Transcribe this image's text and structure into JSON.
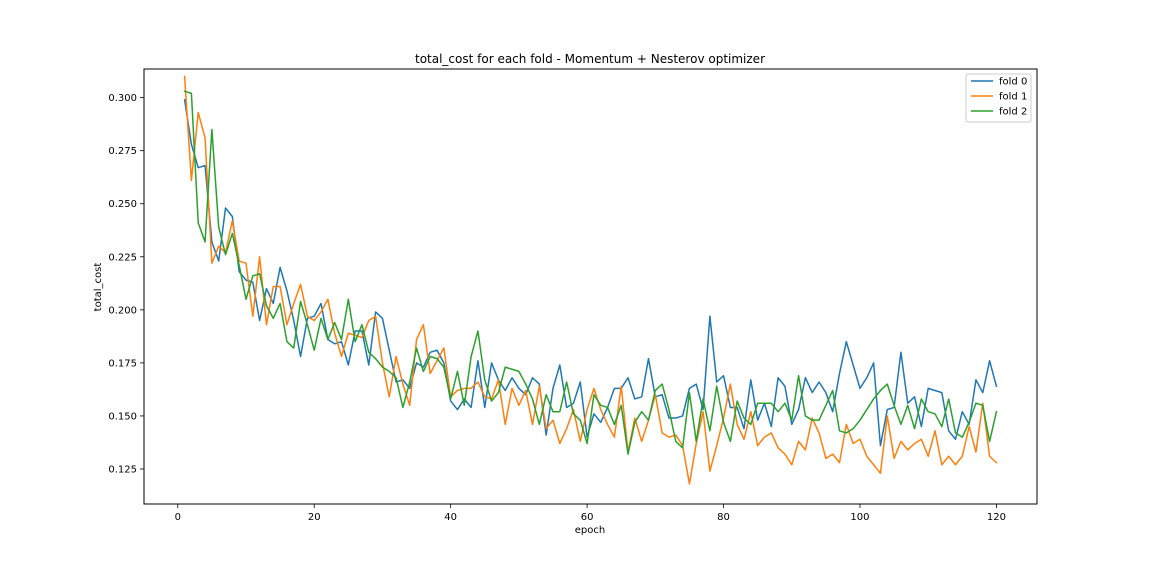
{
  "chart_data": {
    "type": "line",
    "title": "total_cost for each fold - Momentum + Nesterov optimizer",
    "xlabel": "epoch",
    "ylabel": "total_cost",
    "xlim": [
      -4.95,
      125.95
    ],
    "ylim": [
      0.1085,
      0.3135
    ],
    "xticks": [
      0,
      20,
      40,
      60,
      80,
      100,
      120
    ],
    "yticks": [
      0.125,
      0.15,
      0.175,
      0.2,
      0.225,
      0.25,
      0.275,
      0.3
    ],
    "ytick_labels": [
      "0.125",
      "0.150",
      "0.175",
      "0.200",
      "0.225",
      "0.250",
      "0.275",
      "0.300"
    ],
    "grid": false,
    "legend_position": "top-right",
    "x": [
      1,
      2,
      3,
      4,
      5,
      6,
      7,
      8,
      9,
      10,
      11,
      12,
      13,
      14,
      15,
      16,
      17,
      18,
      19,
      20,
      21,
      22,
      23,
      24,
      25,
      26,
      27,
      28,
      29,
      30,
      31,
      32,
      33,
      34,
      35,
      36,
      37,
      38,
      39,
      40,
      41,
      42,
      43,
      44,
      45,
      46,
      47,
      48,
      49,
      50,
      51,
      52,
      53,
      54,
      55,
      56,
      57,
      58,
      59,
      60,
      61,
      62,
      63,
      64,
      65,
      66,
      67,
      68,
      69,
      70,
      71,
      72,
      73,
      74,
      75,
      76,
      77,
      78,
      79,
      80,
      81,
      82,
      83,
      84,
      85,
      86,
      87,
      88,
      89,
      90,
      91,
      92,
      93,
      94,
      95,
      96,
      97,
      98,
      99,
      100,
      101,
      102,
      103,
      104,
      105,
      106,
      107,
      108,
      109,
      110,
      111,
      112,
      113,
      114,
      115,
      116,
      117,
      118,
      119,
      120
    ],
    "series": [
      {
        "name": "fold 0",
        "color": "#1f77b4",
        "values": [
          0.299,
          0.278,
          0.267,
          0.268,
          0.232,
          0.223,
          0.248,
          0.244,
          0.218,
          0.214,
          0.213,
          0.195,
          0.21,
          0.203,
          0.22,
          0.209,
          0.195,
          0.178,
          0.196,
          0.197,
          0.203,
          0.186,
          0.184,
          0.185,
          0.174,
          0.19,
          0.19,
          0.174,
          0.199,
          0.196,
          0.181,
          0.166,
          0.167,
          0.163,
          0.175,
          0.173,
          0.18,
          0.181,
          0.175,
          0.157,
          0.153,
          0.158,
          0.154,
          0.176,
          0.154,
          0.175,
          0.167,
          0.162,
          0.168,
          0.163,
          0.16,
          0.168,
          0.165,
          0.141,
          0.163,
          0.174,
          0.154,
          0.156,
          0.166,
          0.14,
          0.151,
          0.147,
          0.154,
          0.163,
          0.163,
          0.168,
          0.158,
          0.159,
          0.177,
          0.159,
          0.16,
          0.149,
          0.149,
          0.15,
          0.163,
          0.165,
          0.153,
          0.197,
          0.166,
          0.169,
          0.154,
          0.154,
          0.144,
          0.167,
          0.148,
          0.156,
          0.145,
          0.168,
          0.164,
          0.146,
          0.153,
          0.168,
          0.161,
          0.166,
          0.161,
          0.152,
          0.17,
          0.185,
          0.174,
          0.163,
          0.168,
          0.175,
          0.136,
          0.153,
          0.154,
          0.18,
          0.156,
          0.159,
          0.145,
          0.163,
          0.162,
          0.161,
          0.143,
          0.139,
          0.152,
          0.146,
          0.167,
          0.161,
          0.176,
          0.164
        ]
      },
      {
        "name": "fold 1",
        "color": "#ff7f0e",
        "values": [
          0.31,
          0.261,
          0.293,
          0.281,
          0.222,
          0.23,
          0.227,
          0.242,
          0.223,
          0.222,
          0.197,
          0.225,
          0.193,
          0.211,
          0.211,
          0.193,
          0.203,
          0.212,
          0.197,
          0.195,
          0.199,
          0.205,
          0.189,
          0.178,
          0.189,
          0.188,
          0.187,
          0.195,
          0.197,
          0.175,
          0.159,
          0.178,
          0.165,
          0.155,
          0.186,
          0.193,
          0.17,
          0.176,
          0.182,
          0.159,
          0.162,
          0.163,
          0.163,
          0.166,
          0.159,
          0.158,
          0.167,
          0.146,
          0.163,
          0.155,
          0.162,
          0.146,
          0.164,
          0.144,
          0.148,
          0.137,
          0.144,
          0.153,
          0.138,
          0.153,
          0.163,
          0.153,
          0.146,
          0.14,
          0.164,
          0.133,
          0.149,
          0.138,
          0.148,
          0.16,
          0.142,
          0.14,
          0.141,
          0.136,
          0.118,
          0.137,
          0.152,
          0.124,
          0.136,
          0.149,
          0.165,
          0.146,
          0.139,
          0.152,
          0.136,
          0.14,
          0.142,
          0.135,
          0.132,
          0.127,
          0.138,
          0.134,
          0.149,
          0.142,
          0.13,
          0.132,
          0.128,
          0.146,
          0.137,
          0.139,
          0.131,
          0.127,
          0.123,
          0.15,
          0.13,
          0.138,
          0.134,
          0.137,
          0.139,
          0.131,
          0.143,
          0.127,
          0.131,
          0.127,
          0.131,
          0.145,
          0.133,
          0.156,
          0.131,
          0.128
        ]
      },
      {
        "name": "fold 2",
        "color": "#2ca02c",
        "values": [
          0.303,
          0.302,
          0.241,
          0.232,
          0.285,
          0.239,
          0.226,
          0.236,
          0.221,
          0.205,
          0.216,
          0.217,
          0.202,
          0.196,
          0.203,
          0.185,
          0.182,
          0.204,
          0.193,
          0.181,
          0.196,
          0.186,
          0.194,
          0.186,
          0.205,
          0.185,
          0.193,
          0.18,
          0.177,
          0.173,
          0.171,
          0.168,
          0.154,
          0.166,
          0.182,
          0.171,
          0.178,
          0.177,
          0.173,
          0.158,
          0.171,
          0.155,
          0.178,
          0.19,
          0.167,
          0.157,
          0.161,
          0.173,
          0.172,
          0.171,
          0.165,
          0.158,
          0.146,
          0.16,
          0.152,
          0.152,
          0.166,
          0.151,
          0.148,
          0.137,
          0.16,
          0.155,
          0.154,
          0.146,
          0.155,
          0.132,
          0.147,
          0.152,
          0.148,
          0.162,
          0.165,
          0.153,
          0.138,
          0.135,
          0.161,
          0.138,
          0.158,
          0.143,
          0.164,
          0.147,
          0.138,
          0.157,
          0.149,
          0.146,
          0.156,
          0.156,
          0.156,
          0.152,
          0.156,
          0.148,
          0.169,
          0.15,
          0.148,
          0.148,
          0.155,
          0.162,
          0.143,
          0.142,
          0.144,
          0.148,
          0.153,
          0.158,
          0.162,
          0.165,
          0.155,
          0.146,
          0.155,
          0.144,
          0.158,
          0.152,
          0.151,
          0.145,
          0.158,
          0.142,
          0.14,
          0.147,
          0.156,
          0.155,
          0.138,
          0.152
        ]
      }
    ]
  }
}
